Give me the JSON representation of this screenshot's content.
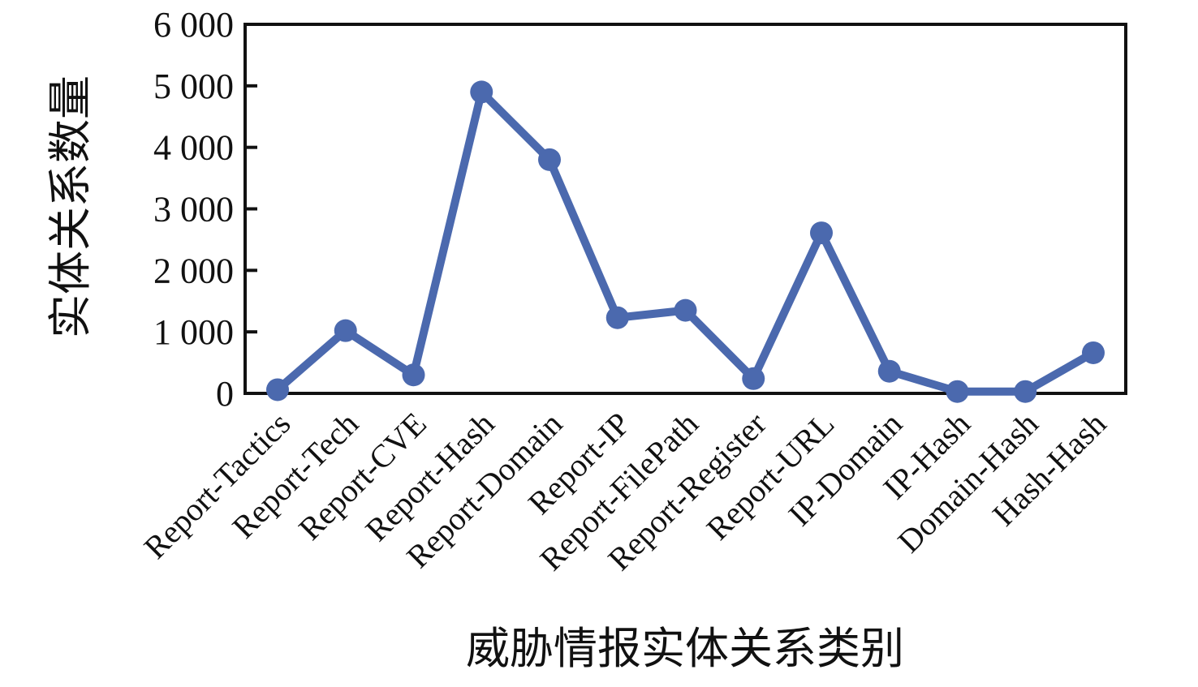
{
  "chart_data": {
    "type": "line",
    "title": "",
    "xlabel": "威胁情报实体关系类别",
    "ylabel": "实体关系数量",
    "categories": [
      "Report-Tactics",
      "Report-Tech",
      "Report-CVE",
      "Report-Hash",
      "Report-Domain",
      "Report-IP",
      "Report-FilePath",
      "Report-Register",
      "Report-URL",
      "IP-Domain",
      "IP-Hash",
      "Domain-Hash",
      "Hash-Hash"
    ],
    "values": [
      60,
      1020,
      300,
      4900,
      3800,
      1230,
      1350,
      240,
      2610,
      360,
      30,
      30,
      660
    ],
    "ylim": [
      0,
      6000
    ],
    "ytick_step": 1000,
    "ytick_labels": [
      "0",
      "1 000",
      "2 000",
      "3 000",
      "4 000",
      "5 000",
      "6 000"
    ],
    "grid": false,
    "legend": "none",
    "line_color": "#4b69ae",
    "axis_color": "#111111",
    "marker": "circle",
    "x_label_rotation_deg": 45
  }
}
